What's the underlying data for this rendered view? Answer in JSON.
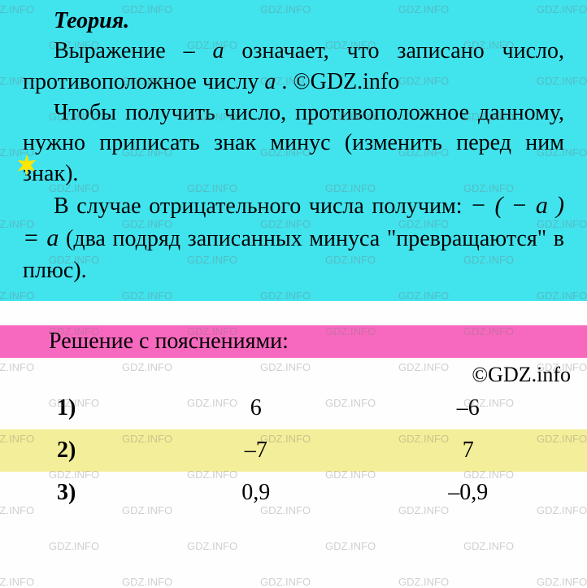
{
  "theory": {
    "title": "Теория.",
    "p1_prefix": "Выражение ",
    "p1_math": "– a",
    "p1_suffix": " означает, что записано число, противоположное числу ",
    "p1_var": "a",
    "p1_end": " . ©GDZ.info",
    "p2": "Чтобы получить число, противоположное данному, нужно приписать знак минус (изменить перед ним знак).",
    "p3_prefix": "В случае отрицательного числа получим: ",
    "p3_formula": "− ( − a ) = a",
    "p3_suffix": " (два подряд записанных минуса \"превращаются\" в плюс)."
  },
  "solution_header": "Решение с пояснениями:",
  "copyright": "©GDZ.info",
  "table": {
    "rows": [
      {
        "num": "1)",
        "a": "6",
        "b": "–6",
        "highlight": false
      },
      {
        "num": "2)",
        "a": "–7",
        "b": "7",
        "highlight": true
      },
      {
        "num": "3)",
        "a": "0,9",
        "b": "–0,9",
        "highlight": false
      }
    ]
  },
  "styling": {
    "theory_bg": "#41e3ed",
    "solution_header_bg": "#f769bf",
    "row_highlight_bg": "#f3ee99",
    "star_color": "#ffe600",
    "watermark_text": "GDZ.INFO",
    "watermark_color": "rgba(120,120,120,0.35)",
    "font_body": "Times New Roman",
    "font_size_pt": 21,
    "logo_text": "INFO"
  }
}
